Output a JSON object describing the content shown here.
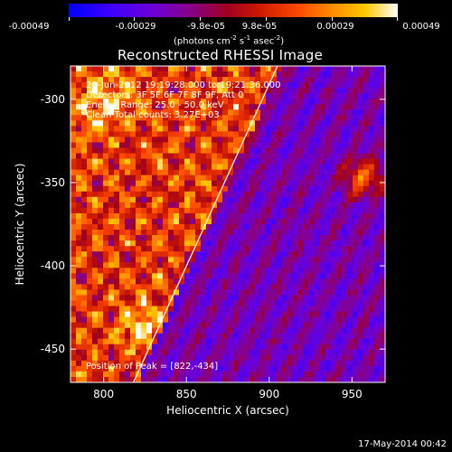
{
  "colorbar": {
    "tick_labels": [
      "-0.00049",
      "-0.00029",
      "-9.8e-05",
      "9.8e-05",
      "0.00029",
      "0.00049"
    ],
    "units_prefix": "(photons cm",
    "units_exp1": "-2",
    "units_mid": " s",
    "units_exp2": "-1",
    "units_mid2": " asec",
    "units_exp3": "-2",
    "units_suffix": ")"
  },
  "chart_data": {
    "type": "heatmap",
    "title": "Reconstructed RHESSI Image",
    "xlabel": "Heliocentric X (arcsec)",
    "ylabel": "Heliocentric Y (arcsec)",
    "xlim": [
      780,
      970
    ],
    "ylim": [
      -470,
      -280
    ],
    "x_ticks": [
      "800",
      "850",
      "900",
      "950"
    ],
    "y_ticks": [
      "-300",
      "-350",
      "-400",
      "-450"
    ],
    "x_tick_values": [
      800,
      850,
      900,
      950
    ],
    "y_tick_values": [
      -300,
      -350,
      -400,
      -450
    ],
    "annotations": [
      "20-Jun-2012 19:19:28.000 to 19:21:36.000",
      "Detectors: 3F 5F 6F 7F 8F 9F, Att 0",
      "Energy Range: 25.0 - 50.0 keV",
      "Clean     Total counts: 3.27E+03"
    ],
    "peak_label": "Position of Peak = [822,-434]",
    "limb_line": [
      [
        818,
        -470
      ],
      [
        905,
        -280
      ]
    ]
  },
  "footer": {
    "date": "17-May-2014 00:42"
  }
}
